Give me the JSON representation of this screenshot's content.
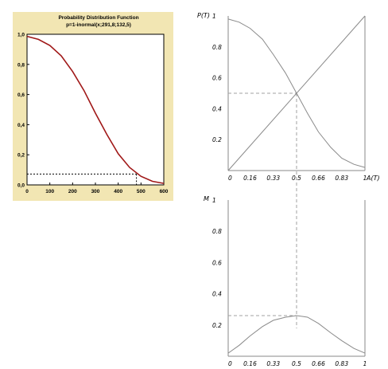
{
  "colors": {
    "cdf_panel_bg": "#f2e6b3",
    "cdf_curve": "#a01818",
    "line": "#8a8a8a",
    "dash": "#a0a0a0"
  },
  "chart_data": [
    {
      "type": "line",
      "title": "Probability Distribution Function",
      "subtitle": "p=1-inormal(x;291,8;132,5)",
      "x_ticks": [
        "0",
        "100",
        "200",
        "300",
        "400",
        "500",
        "600"
      ],
      "y_ticks": [
        "0,0",
        "0,2",
        "0,4",
        "0,6",
        "0,8",
        "1,0"
      ],
      "xlim": [
        0,
        600
      ],
      "ylim": [
        0,
        1
      ],
      "grid": false,
      "series": [
        {
          "x": [
            0,
            50,
            100,
            150,
            200,
            250,
            300,
            350,
            400,
            450,
            500,
            550,
            600
          ],
          "y": [
            0.986,
            0.966,
            0.926,
            0.857,
            0.753,
            0.626,
            0.476,
            0.336,
            0.207,
            0.116,
            0.057,
            0.024,
            0.01
          ]
        }
      ],
      "reference": {
        "x": 480,
        "y": 0.072
      }
    },
    {
      "type": "line",
      "ylabel": "P(T)",
      "xlabel": "A(T)",
      "x_ticks": [
        "0",
        "0.16",
        "0.33",
        "0.5",
        "0.66",
        "0.83",
        "1"
      ],
      "y_ticks": [
        "0.2",
        "0.4",
        "0.6",
        "0.8",
        "1"
      ],
      "xlim": [
        0,
        1
      ],
      "ylim": [
        0,
        1
      ],
      "grid": false,
      "series": [
        {
          "x": [
            0,
            0.08,
            0.16,
            0.25,
            0.33,
            0.42,
            0.5,
            0.58,
            0.66,
            0.75,
            0.83,
            0.92,
            1
          ],
          "y": [
            0.98,
            0.96,
            0.92,
            0.85,
            0.75,
            0.63,
            0.5,
            0.37,
            0.25,
            0.15,
            0.08,
            0.04,
            0.02
          ]
        },
        {
          "x": [
            0,
            1
          ],
          "y": [
            0,
            1
          ]
        }
      ],
      "reference": {
        "x": 0.5,
        "y": 0.5
      }
    },
    {
      "type": "line",
      "ylabel": "M",
      "x_ticks": [
        "0",
        "0.16",
        "0.33",
        "0.5",
        "0.66",
        "0.83",
        "1"
      ],
      "y_ticks": [
        "0.2",
        "0.4",
        "0.6",
        "0.8",
        "1"
      ],
      "xlim": [
        0,
        1
      ],
      "ylim": [
        0,
        1
      ],
      "grid": false,
      "series": [
        {
          "x": [
            0,
            0.08,
            0.16,
            0.25,
            0.33,
            0.42,
            0.5,
            0.58,
            0.66,
            0.75,
            0.83,
            0.92,
            1
          ],
          "y": [
            0.02,
            0.07,
            0.13,
            0.19,
            0.23,
            0.25,
            0.26,
            0.25,
            0.21,
            0.15,
            0.1,
            0.05,
            0.02
          ]
        }
      ],
      "reference": {
        "x": 0.5,
        "y": 0.26
      }
    }
  ]
}
